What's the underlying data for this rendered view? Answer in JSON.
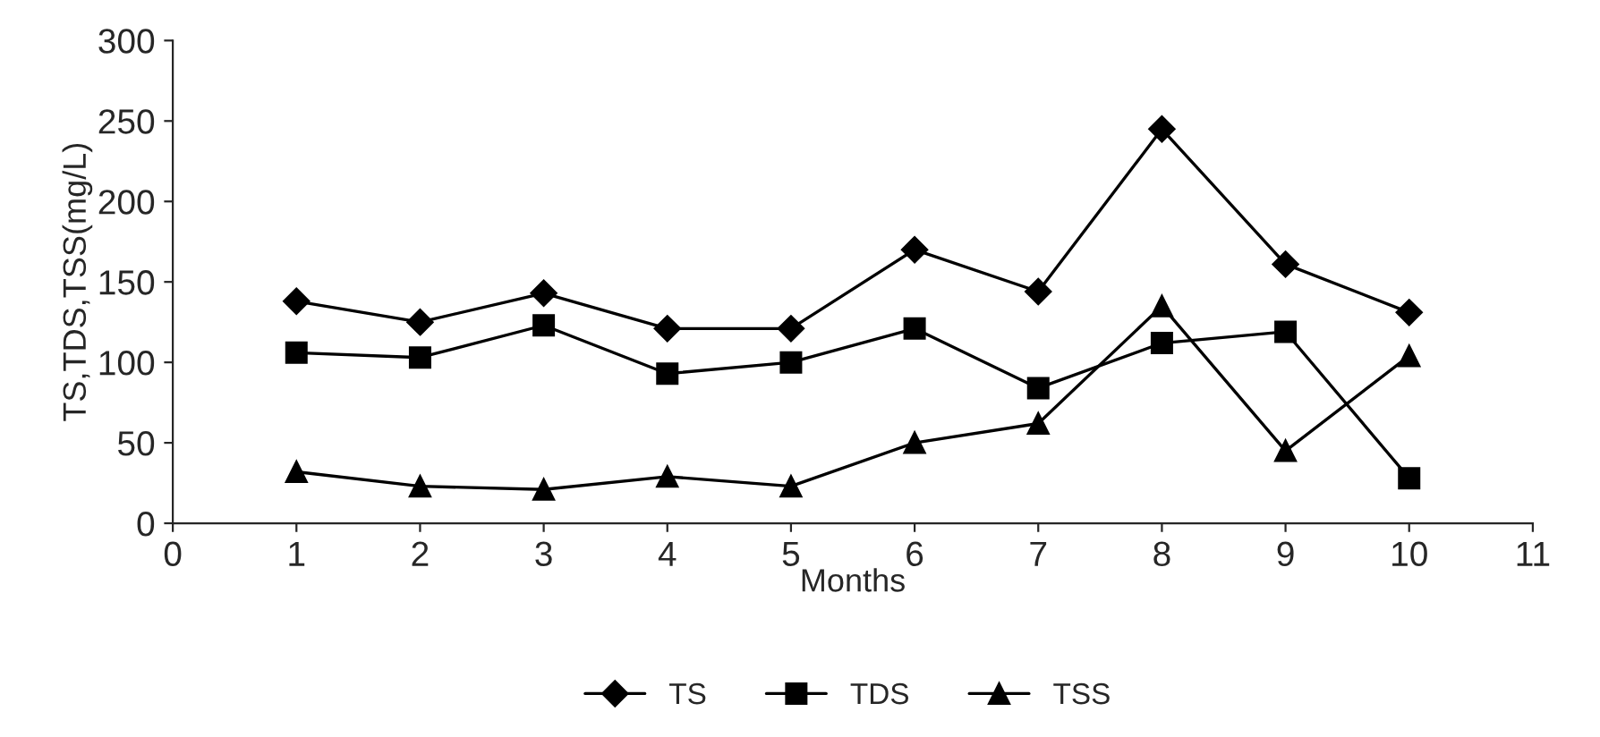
{
  "chart_data": {
    "type": "line",
    "xlabel": "Months",
    "ylabel": "TS,TDS,TSS(mg/L)",
    "x": [
      1,
      2,
      3,
      4,
      5,
      6,
      7,
      8,
      9,
      10
    ],
    "series": [
      {
        "name": "TS",
        "color": "#000000",
        "marker": "diamond",
        "values": [
          138,
          125,
          143,
          121,
          121,
          170,
          144,
          245,
          161,
          131
        ]
      },
      {
        "name": "TDS",
        "color": "#000000",
        "marker": "square",
        "values": [
          106,
          103,
          123,
          93,
          100,
          121,
          84,
          112,
          119,
          28
        ]
      },
      {
        "name": "TSS",
        "color": "#000000",
        "marker": "triangle",
        "values": [
          32,
          23,
          21,
          29,
          23,
          50,
          62,
          135,
          45,
          104
        ]
      }
    ],
    "xlim": [
      0,
      11
    ],
    "xticks": [
      0,
      1,
      2,
      3,
      4,
      5,
      6,
      7,
      8,
      9,
      10,
      11
    ],
    "ylim": [
      0,
      300
    ],
    "yticks": [
      0,
      50,
      100,
      150,
      200,
      250,
      300
    ],
    "grid": false,
    "legend": "bottom",
    "line_style": "solid"
  }
}
